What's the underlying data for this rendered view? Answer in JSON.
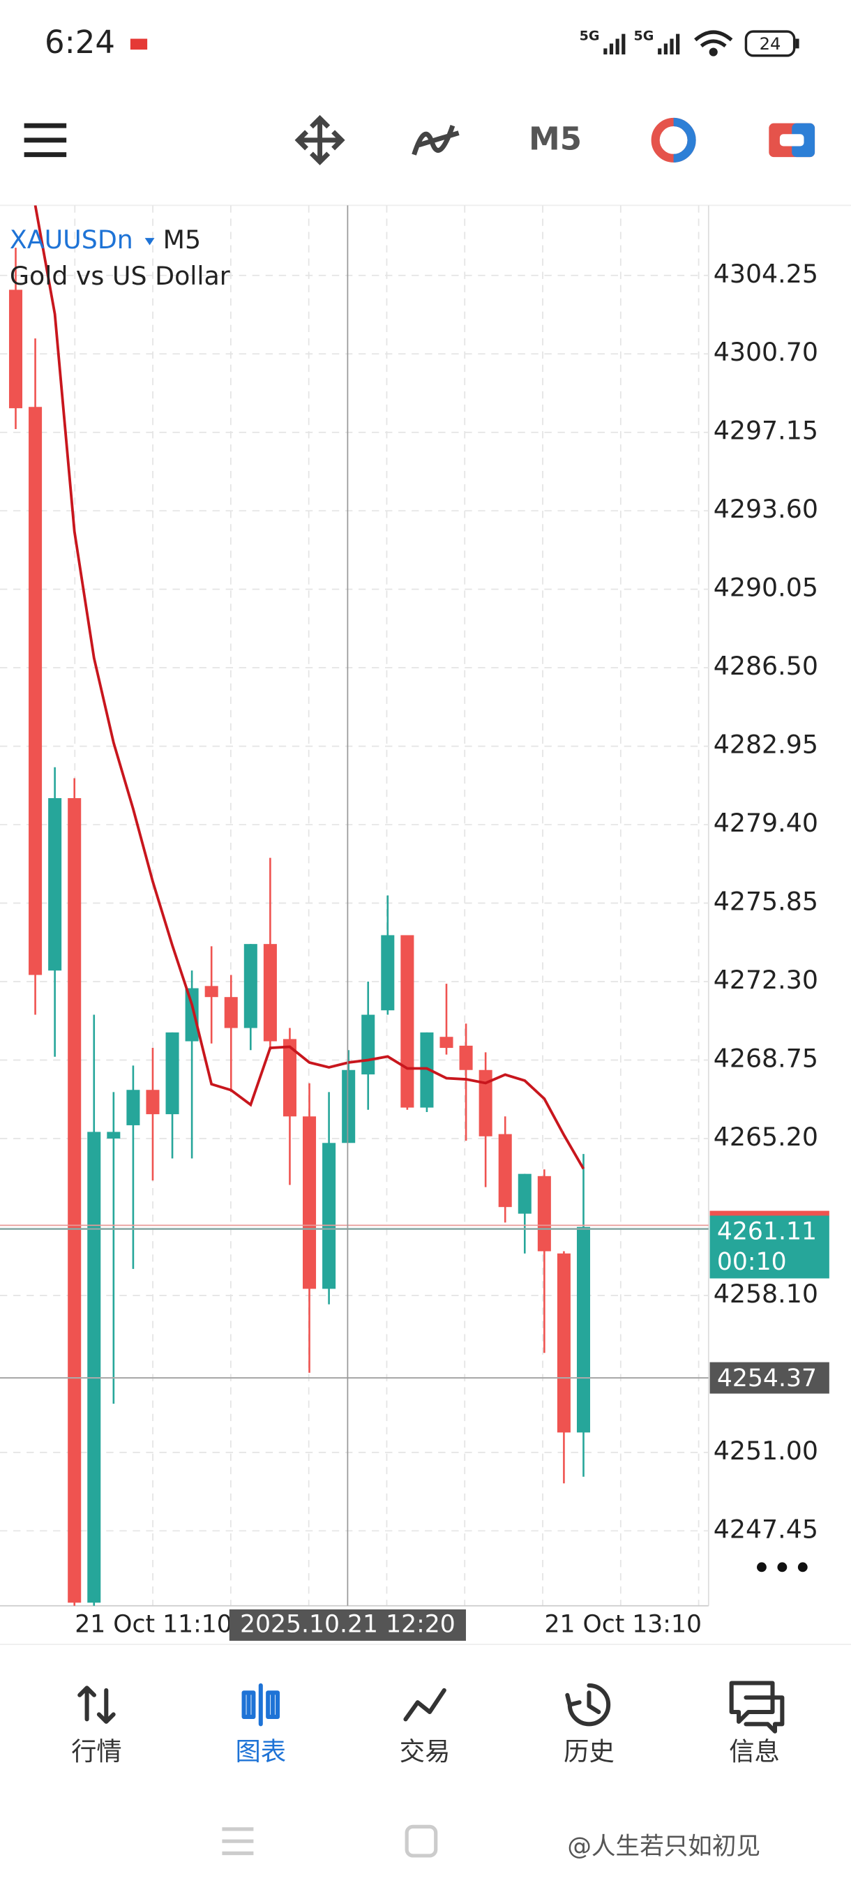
{
  "status_bar": {
    "time": "6:24",
    "network_1": "5G",
    "network_2": "5G",
    "battery": "24"
  },
  "toolbar": {
    "timeframe": "M5"
  },
  "chart_data": {
    "type": "candlestick",
    "symbol": "XAUUSDn",
    "timeframe": "M5",
    "subtitle": "Gold vs US Dollar",
    "up_color": "#26a69a",
    "down_color": "#ef5350",
    "open": [
      4303.6,
      4298.3,
      4272.8,
      4280.6,
      4244.2,
      4265.2,
      4265.8,
      4267.4,
      4266.3,
      4269.6,
      4272.1,
      4271.6,
      4270.2,
      4274.0,
      4269.7,
      4266.2,
      4258.4,
      4265.0,
      4268.1,
      4271.0,
      4274.4,
      4266.6,
      4269.8,
      4269.4,
      4268.3,
      4265.4,
      4261.8,
      4263.5,
      4260.0,
      4251.9
    ],
    "high": [
      4305.5,
      4301.4,
      4282.0,
      4281.5,
      4270.8,
      4267.3,
      4268.5,
      4269.3,
      4270.0,
      4272.8,
      4273.9,
      4272.6,
      4274.0,
      4277.9,
      4270.2,
      4267.7,
      4267.3,
      4269.2,
      4272.3,
      4276.2,
      4274.4,
      4270.0,
      4272.2,
      4270.4,
      4269.1,
      4266.2,
      4263.6,
      4263.8,
      4260.1,
      4264.5
    ],
    "low": [
      4297.3,
      4270.8,
      4268.9,
      4243.5,
      4243.5,
      4253.2,
      4259.3,
      4263.3,
      4264.3,
      4264.3,
      4269.5,
      4267.3,
      4269.2,
      4269.2,
      4263.1,
      4254.6,
      4257.7,
      4265.1,
      4266.5,
      4270.8,
      4266.5,
      4266.4,
      4269.0,
      4265.1,
      4263.0,
      4261.4,
      4260.0,
      4255.5,
      4249.6,
      4249.9
    ],
    "close": [
      4298.24,
      4272.6,
      4280.6,
      4244.2,
      4265.5,
      4265.5,
      4267.4,
      4266.3,
      4270.0,
      4272.0,
      4271.6,
      4270.2,
      4274.0,
      4269.6,
      4266.2,
      4258.4,
      4265.0,
      4268.3,
      4270.8,
      4274.4,
      4266.6,
      4270.0,
      4269.3,
      4268.3,
      4265.3,
      4262.1,
      4263.6,
      4260.1,
      4251.9,
      4261.2
    ],
    "moving_average": {
      "color": "#c8161d",
      "values": [
        null,
        4307.42,
        4302.5,
        4292.67,
        4286.94,
        4283.11,
        4280.11,
        4276.83,
        4273.94,
        4271.26,
        4267.66,
        4267.39,
        4266.73,
        4269.3,
        4269.35,
        4268.64,
        4268.42,
        4268.64,
        4268.75,
        4268.91,
        4268.37,
        4268.37,
        4267.93,
        4267.88,
        4267.71,
        4268.09,
        4267.82,
        4267.0,
        4265.36,
        4263.83
      ]
    },
    "ylim": [
      4244.06,
      4307.42
    ],
    "yticks": [
      4304.25,
      {
        "value": 4300.7,
        "label": "4300.70"
      },
      4297.15,
      {
        "value": 4293.6,
        "label": "4293.60"
      },
      4290.05,
      {
        "value": 4286.5,
        "label": "4286.50"
      },
      4282.95,
      {
        "value": 4279.4,
        "label": "4279.40"
      },
      4275.85,
      {
        "value": 4272.3,
        "label": "4272.30"
      },
      4268.75,
      {
        "value": 4265.2,
        "label": "4265.20"
      },
      {
        "value": 4258.1,
        "label": "4258.10"
      },
      {
        "value": 4251.0,
        "label": "4251.00"
      },
      4247.45
    ],
    "grid": true,
    "x_labels": [
      "21 Oct 11:10",
      "21 Oct 13:10"
    ],
    "bid": {
      "price": 4261.11,
      "countdown": "00:10"
    },
    "crosshair": {
      "price": 4254.37,
      "time": "2025.10.21 12:20"
    }
  },
  "bottom_nav": {
    "items": [
      "行情",
      "图表",
      "交易",
      "历史",
      "信息"
    ],
    "active": 1
  },
  "watermark": "@人生若只如初见"
}
